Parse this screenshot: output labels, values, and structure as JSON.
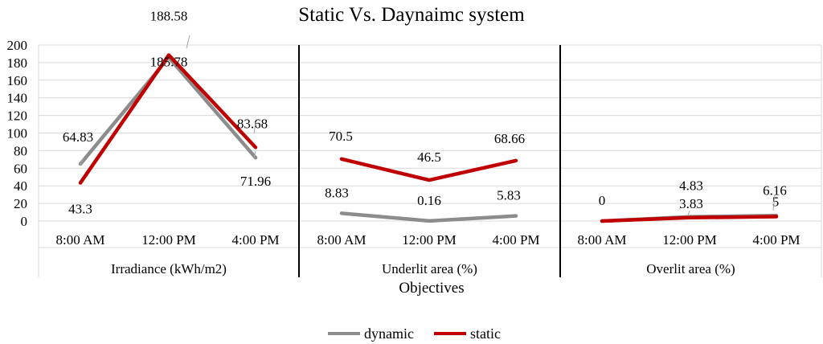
{
  "chart_data": {
    "type": "line",
    "title": "Static Vs. Daynaimc system",
    "xlabel": "Objectives",
    "ylabel": "",
    "ylim": [
      0,
      200
    ],
    "yticks": [
      0,
      20,
      40,
      60,
      80,
      100,
      120,
      140,
      160,
      180,
      200
    ],
    "grid": true,
    "legend_position": "bottom",
    "groups": [
      {
        "label": "Irradiance (kWh/m2)",
        "categories": [
          "8:00 AM",
          "12:00 PM",
          "4:00 PM"
        ],
        "series": [
          {
            "name": "dynamic",
            "values": [
              64.83,
              185.78,
              71.96
            ]
          },
          {
            "name": "static",
            "values": [
              43.3,
              188.58,
              83.68
            ]
          }
        ]
      },
      {
        "label": "Underlit area (%)",
        "categories": [
          "8:00 AM",
          "12:00 PM",
          "4:00 PM"
        ],
        "series": [
          {
            "name": "dynamic",
            "values": [
              8.83,
              0.16,
              5.83
            ]
          },
          {
            "name": "static",
            "values": [
              70.5,
              46.5,
              68.66
            ]
          }
        ]
      },
      {
        "label": "Overlit area (%)",
        "categories": [
          "8:00 AM",
          "12:00 PM",
          "4:00 PM"
        ],
        "series": [
          {
            "name": "dynamic",
            "values": [
              0,
              4.83,
              6.16
            ]
          },
          {
            "name": "static",
            "values": [
              0,
              3.83,
              5
            ]
          }
        ]
      }
    ],
    "data_labels": [
      [
        "64.83",
        "185.78",
        "71.96",
        "43.3",
        "188.58",
        "83.68"
      ],
      [
        "8.83",
        "0.16",
        "5.83",
        "70.5",
        "46.5",
        "68.66"
      ],
      [
        "0",
        "4.83",
        "6.16",
        "",
        "3.83",
        "5"
      ]
    ],
    "colors": {
      "dynamic": "#8c8c8c",
      "static": "#c00000"
    }
  }
}
